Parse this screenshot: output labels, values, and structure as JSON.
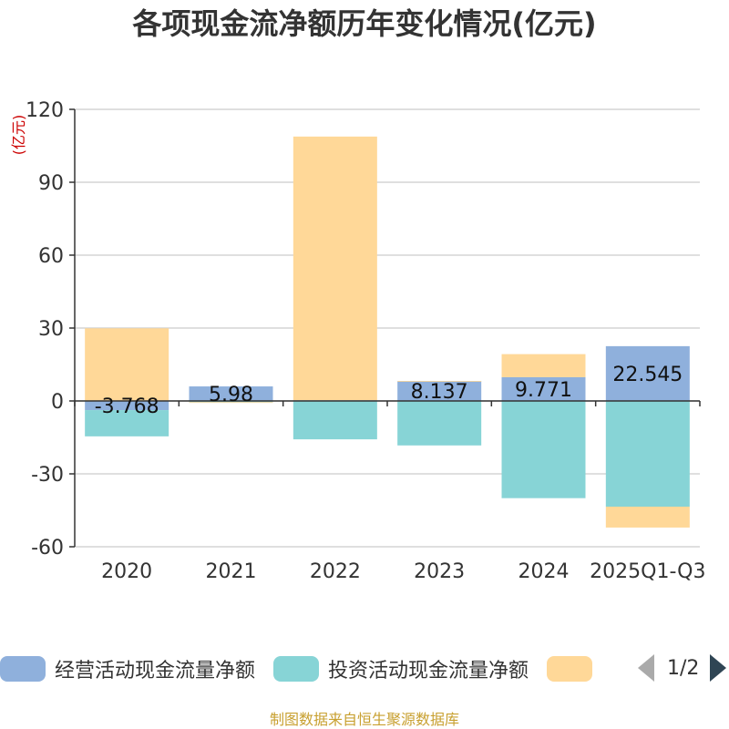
{
  "chart_data": {
    "type": "bar",
    "stacked": true,
    "title": "各项现金流净额历年变化情况(亿元)",
    "ylabel": "(亿元)",
    "categories": [
      "2020",
      "2021",
      "2022",
      "2023",
      "2024",
      "2025Q1-Q3"
    ],
    "yticks": [
      120,
      90,
      60,
      30,
      0,
      -30,
      -60
    ],
    "ylim": [
      -60,
      120
    ],
    "grid": true,
    "legend_position": "bottom",
    "series": [
      {
        "name": "经营活动现金流量净额",
        "color": "#8fb0dc",
        "values": [
          -3.768,
          5.98,
          0.3,
          8.137,
          9.771,
          22.545
        ],
        "labels": [
          "-3.768",
          "5.98",
          "",
          "8.137",
          "9.771",
          "22.545"
        ]
      },
      {
        "name": "投资活动现金流量净额",
        "color": "#87d4d6",
        "values": [
          -10.8,
          -0.5,
          -15.8,
          -18.3,
          -40.0,
          -43.5
        ]
      },
      {
        "name": "",
        "color": "#ffd898",
        "values": [
          29.9,
          -0.3,
          108.5,
          0.1,
          9.5,
          -8.6
        ]
      }
    ]
  },
  "legend": {
    "page": "1/2"
  },
  "source_note": "制图数据来自恒生聚源数据库"
}
